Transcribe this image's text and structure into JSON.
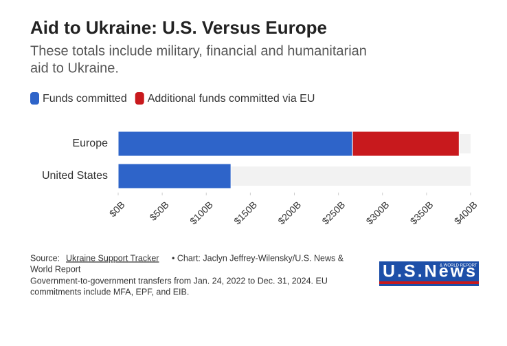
{
  "chart_data": {
    "type": "stacked-hbar",
    "title": "Aid to Ukraine: U.S. Versus Europe",
    "subtitle": [
      "These totals include military, financial and humanitarian",
      "aid to Ukraine."
    ],
    "categories": [
      "Europe",
      "United States"
    ],
    "series": [
      {
        "name": "Funds committed",
        "color": "#2e64c9",
        "values": [
          266,
          128
        ]
      },
      {
        "name": "Additional funds committed via EU",
        "color": "#c8191d",
        "values": [
          121,
          null
        ]
      }
    ],
    "xlim": [
      0,
      400
    ],
    "xticks": [
      {
        "value": 0,
        "label": "$0B"
      },
      {
        "value": 50,
        "label": "$50B"
      },
      {
        "value": 100,
        "label": "$100B"
      },
      {
        "value": 150,
        "label": "$150B"
      },
      {
        "value": 200,
        "label": "$200B"
      },
      {
        "value": 250,
        "label": "$250B"
      },
      {
        "value": 300,
        "label": "$300B"
      },
      {
        "value": 350,
        "label": "$350B"
      },
      {
        "value": 400,
        "label": "$400B"
      }
    ],
    "legend_position": "top-left",
    "source": {
      "prefix": "Source:",
      "link": "Ukraine Support Tracker",
      "credit_1": "• Chart: Jaclyn Jeffrey-Wilensky/U.S. News &",
      "credit_2": "World Report"
    },
    "notes": [
      "Government-to-government transfers from Jan. 24, 2022 to Dec. 31, 2024. EU",
      "commitments include MFA, EPF, and EIB."
    ],
    "logo": {
      "main": "U.S.News",
      "small": "& WORLD REPORT"
    }
  }
}
